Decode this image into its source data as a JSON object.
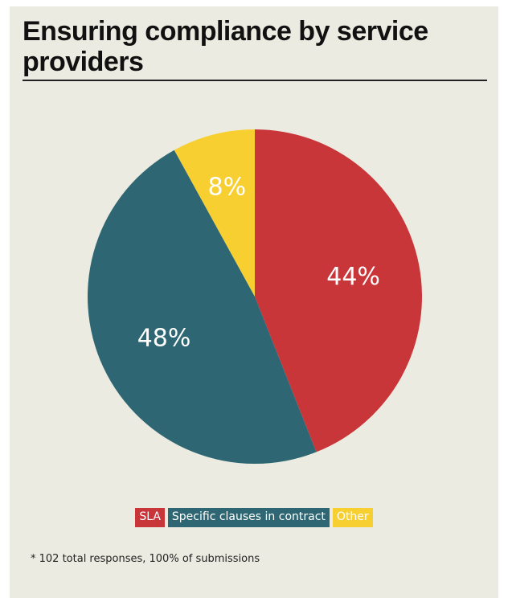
{
  "title": "Ensuring compliance by service providers",
  "footnote": "* 102 total responses, 100% of submissions",
  "chart_data": {
    "type": "pie",
    "title": "Ensuring compliance by service providers",
    "slices": [
      {
        "label": "SLA",
        "value": 44,
        "display": "44%",
        "color": "#c9363a"
      },
      {
        "label": "Specific clauses in contract",
        "value": 48,
        "display": "48%",
        "color": "#2e6773"
      },
      {
        "label": "Other",
        "value": 8,
        "display": "8%",
        "color": "#f8cf31"
      }
    ],
    "legend_position": "bottom",
    "background_color": "#ecebe1"
  }
}
